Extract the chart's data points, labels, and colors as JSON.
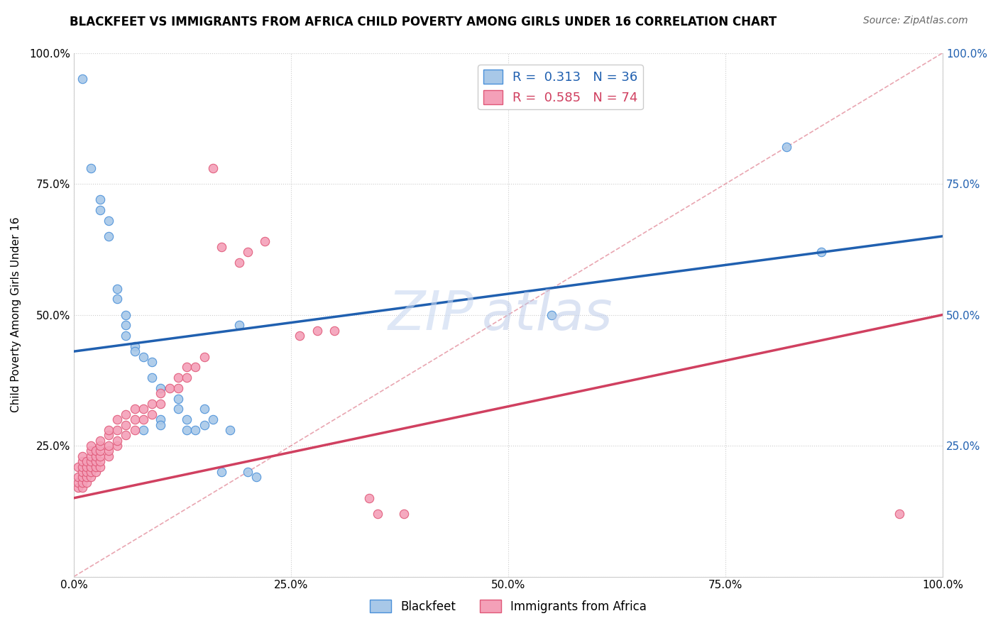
{
  "title": "BLACKFEET VS IMMIGRANTS FROM AFRICA CHILD POVERTY AMONG GIRLS UNDER 16 CORRELATION CHART",
  "source": "Source: ZipAtlas.com",
  "ylabel": "Child Poverty Among Girls Under 16",
  "watermark_zip": "ZIP",
  "watermark_atlas": "atlas",
  "R1": 0.313,
  "N1": 36,
  "R2": 0.585,
  "N2": 74,
  "blue_fill": "#a8c8e8",
  "blue_edge": "#4a90d9",
  "pink_fill": "#f4a0b8",
  "pink_edge": "#e05878",
  "blue_line": "#2060b0",
  "pink_line": "#d04060",
  "diag_color": "#e08090",
  "blue_scatter": [
    [
      0.01,
      0.95
    ],
    [
      0.02,
      0.78
    ],
    [
      0.03,
      0.72
    ],
    [
      0.03,
      0.7
    ],
    [
      0.04,
      0.68
    ],
    [
      0.04,
      0.65
    ],
    [
      0.05,
      0.55
    ],
    [
      0.05,
      0.53
    ],
    [
      0.06,
      0.5
    ],
    [
      0.06,
      0.48
    ],
    [
      0.06,
      0.46
    ],
    [
      0.07,
      0.44
    ],
    [
      0.07,
      0.43
    ],
    [
      0.08,
      0.42
    ],
    [
      0.08,
      0.28
    ],
    [
      0.09,
      0.41
    ],
    [
      0.09,
      0.38
    ],
    [
      0.1,
      0.36
    ],
    [
      0.1,
      0.3
    ],
    [
      0.1,
      0.29
    ],
    [
      0.12,
      0.34
    ],
    [
      0.12,
      0.32
    ],
    [
      0.13,
      0.3
    ],
    [
      0.13,
      0.28
    ],
    [
      0.14,
      0.28
    ],
    [
      0.15,
      0.32
    ],
    [
      0.15,
      0.29
    ],
    [
      0.16,
      0.3
    ],
    [
      0.17,
      0.2
    ],
    [
      0.18,
      0.28
    ],
    [
      0.19,
      0.48
    ],
    [
      0.2,
      0.2
    ],
    [
      0.21,
      0.19
    ],
    [
      0.55,
      0.5
    ],
    [
      0.82,
      0.82
    ],
    [
      0.86,
      0.62
    ]
  ],
  "pink_scatter": [
    [
      0.005,
      0.17
    ],
    [
      0.005,
      0.18
    ],
    [
      0.005,
      0.19
    ],
    [
      0.005,
      0.21
    ],
    [
      0.01,
      0.17
    ],
    [
      0.01,
      0.18
    ],
    [
      0.01,
      0.19
    ],
    [
      0.01,
      0.2
    ],
    [
      0.01,
      0.21
    ],
    [
      0.01,
      0.22
    ],
    [
      0.01,
      0.23
    ],
    [
      0.015,
      0.18
    ],
    [
      0.015,
      0.19
    ],
    [
      0.015,
      0.2
    ],
    [
      0.015,
      0.21
    ],
    [
      0.015,
      0.22
    ],
    [
      0.02,
      0.19
    ],
    [
      0.02,
      0.2
    ],
    [
      0.02,
      0.21
    ],
    [
      0.02,
      0.22
    ],
    [
      0.02,
      0.23
    ],
    [
      0.02,
      0.24
    ],
    [
      0.02,
      0.25
    ],
    [
      0.025,
      0.2
    ],
    [
      0.025,
      0.21
    ],
    [
      0.025,
      0.22
    ],
    [
      0.025,
      0.23
    ],
    [
      0.025,
      0.24
    ],
    [
      0.03,
      0.21
    ],
    [
      0.03,
      0.22
    ],
    [
      0.03,
      0.23
    ],
    [
      0.03,
      0.24
    ],
    [
      0.03,
      0.25
    ],
    [
      0.03,
      0.26
    ],
    [
      0.04,
      0.23
    ],
    [
      0.04,
      0.24
    ],
    [
      0.04,
      0.25
    ],
    [
      0.04,
      0.27
    ],
    [
      0.04,
      0.28
    ],
    [
      0.05,
      0.25
    ],
    [
      0.05,
      0.26
    ],
    [
      0.05,
      0.28
    ],
    [
      0.05,
      0.3
    ],
    [
      0.06,
      0.27
    ],
    [
      0.06,
      0.29
    ],
    [
      0.06,
      0.31
    ],
    [
      0.07,
      0.28
    ],
    [
      0.07,
      0.3
    ],
    [
      0.07,
      0.32
    ],
    [
      0.08,
      0.3
    ],
    [
      0.08,
      0.32
    ],
    [
      0.09,
      0.31
    ],
    [
      0.09,
      0.33
    ],
    [
      0.1,
      0.33
    ],
    [
      0.1,
      0.35
    ],
    [
      0.11,
      0.36
    ],
    [
      0.12,
      0.36
    ],
    [
      0.12,
      0.38
    ],
    [
      0.13,
      0.38
    ],
    [
      0.13,
      0.4
    ],
    [
      0.14,
      0.4
    ],
    [
      0.15,
      0.42
    ],
    [
      0.16,
      0.78
    ],
    [
      0.17,
      0.63
    ],
    [
      0.19,
      0.6
    ],
    [
      0.2,
      0.62
    ],
    [
      0.22,
      0.64
    ],
    [
      0.26,
      0.46
    ],
    [
      0.28,
      0.47
    ],
    [
      0.3,
      0.47
    ],
    [
      0.34,
      0.15
    ],
    [
      0.35,
      0.12
    ],
    [
      0.38,
      0.12
    ],
    [
      0.95,
      0.12
    ]
  ],
  "blue_line_pts": [
    [
      0.0,
      0.43
    ],
    [
      1.0,
      0.65
    ]
  ],
  "pink_line_pts": [
    [
      0.0,
      0.15
    ],
    [
      1.0,
      0.5
    ]
  ],
  "xlim": [
    0,
    1.0
  ],
  "ylim": [
    0,
    1.0
  ],
  "xticks": [
    0.0,
    0.25,
    0.5,
    0.75,
    1.0
  ],
  "yticks": [
    0.0,
    0.25,
    0.5,
    0.75,
    1.0
  ],
  "xticklabels": [
    "0.0%",
    "25.0%",
    "50.0%",
    "75.0%",
    "100.0%"
  ],
  "left_yticklabels": [
    "",
    "25.0%",
    "50.0%",
    "75.0%",
    "100.0%"
  ],
  "right_yticklabels": [
    "25.0%",
    "50.0%",
    "75.0%",
    "100.0%"
  ],
  "right_yticks": [
    0.25,
    0.5,
    0.75,
    1.0
  ]
}
